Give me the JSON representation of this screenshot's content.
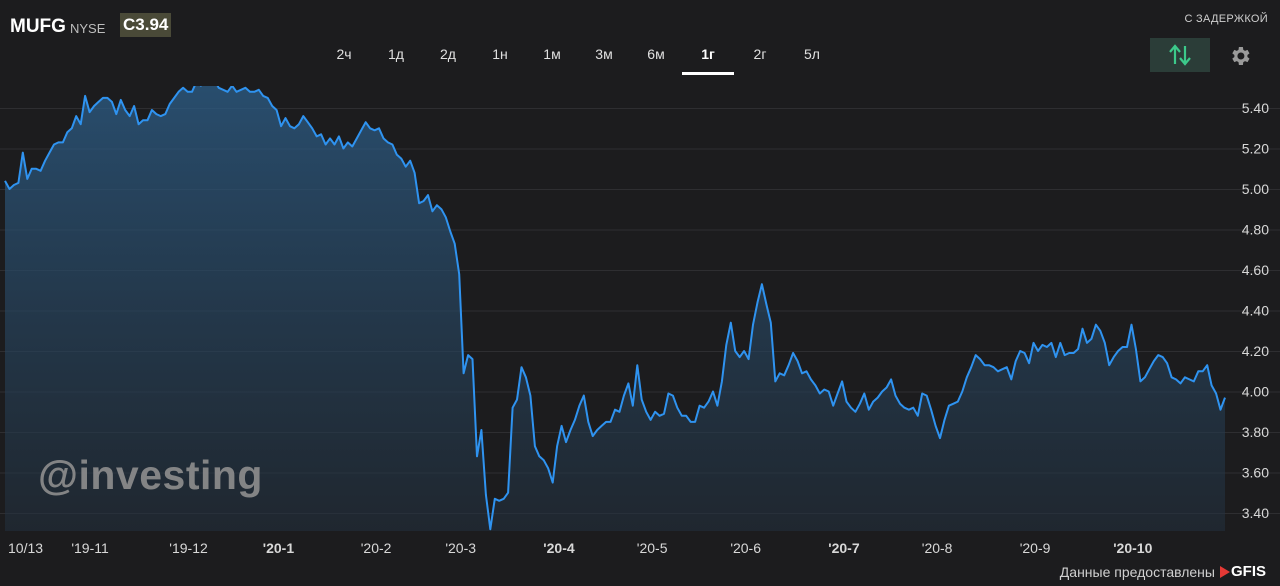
{
  "header": {
    "ticker": "MUFG",
    "exchange": "NYSE",
    "price": "C3.94",
    "delay_label": "С ЗАДЕРЖКОЙ"
  },
  "tabs": [
    {
      "label": "2ч",
      "active": false
    },
    {
      "label": "1д",
      "active": false
    },
    {
      "label": "2д",
      "active": false
    },
    {
      "label": "1н",
      "active": false
    },
    {
      "label": "1м",
      "active": false
    },
    {
      "label": "3м",
      "active": false
    },
    {
      "label": "6м",
      "active": false
    },
    {
      "label": "1г",
      "active": true
    },
    {
      "label": "2г",
      "active": false
    },
    {
      "label": "5л",
      "active": false
    }
  ],
  "icons": {
    "sort": "sort-arrows-icon",
    "settings": "gear-icon"
  },
  "colors": {
    "background": "#1c1c1e",
    "line": "#2f93f0",
    "accent_button": "#2b3d38",
    "accent_arrows": "#3cc98a"
  },
  "watermark": "@investing",
  "footer": {
    "credit": "Данные предоставлены",
    "provider": "GFIS"
  },
  "chart_data": {
    "type": "area",
    "ylim": [
      3.3,
      5.6
    ],
    "yticks": [
      "5.40",
      "5.20",
      "5.00",
      "4.80",
      "4.60",
      "4.40",
      "4.20",
      "4.00",
      "3.80",
      "3.60",
      "3.40"
    ],
    "grid": true,
    "xticks": [
      {
        "label": "10/13",
        "pos": 0,
        "bold": false
      },
      {
        "label": "'19-11",
        "pos": 14,
        "bold": false
      },
      {
        "label": "'19-12",
        "pos": 36,
        "bold": false
      },
      {
        "label": "'20-1",
        "pos": 57,
        "bold": true
      },
      {
        "label": "'20-2",
        "pos": 79,
        "bold": false
      },
      {
        "label": "'20-3",
        "pos": 98,
        "bold": false
      },
      {
        "label": "'20-4",
        "pos": 120,
        "bold": true
      },
      {
        "label": "'20-5",
        "pos": 141,
        "bold": false
      },
      {
        "label": "'20-6",
        "pos": 162,
        "bold": false
      },
      {
        "label": "'20-7",
        "pos": 184,
        "bold": true
      },
      {
        "label": "'20-8",
        "pos": 205,
        "bold": false
      },
      {
        "label": "'20-9",
        "pos": 227,
        "bold": false
      },
      {
        "label": "'20-10",
        "pos": 248,
        "bold": true
      }
    ],
    "values": [
      5.04,
      5.0,
      5.02,
      5.03,
      5.18,
      5.05,
      5.1,
      5.1,
      5.09,
      5.14,
      5.18,
      5.22,
      5.23,
      5.23,
      5.28,
      5.3,
      5.36,
      5.32,
      5.46,
      5.38,
      5.41,
      5.43,
      5.45,
      5.45,
      5.43,
      5.37,
      5.44,
      5.39,
      5.36,
      5.41,
      5.32,
      5.34,
      5.34,
      5.39,
      5.37,
      5.36,
      5.37,
      5.42,
      5.45,
      5.48,
      5.5,
      5.48,
      5.48,
      5.53,
      5.51,
      5.55,
      5.55,
      5.54,
      5.5,
      5.49,
      5.48,
      5.51,
      5.48,
      5.49,
      5.5,
      5.48,
      5.48,
      5.49,
      5.46,
      5.45,
      5.41,
      5.39,
      5.31,
      5.35,
      5.31,
      5.3,
      5.32,
      5.36,
      5.33,
      5.3,
      5.26,
      5.27,
      5.22,
      5.25,
      5.22,
      5.26,
      5.2,
      5.23,
      5.21,
      5.25,
      5.29,
      5.33,
      5.3,
      5.29,
      5.3,
      5.25,
      5.23,
      5.22,
      5.17,
      5.15,
      5.11,
      5.14,
      5.08,
      4.93,
      4.94,
      4.97,
      4.89,
      4.92,
      4.9,
      4.86,
      4.79,
      4.73,
      4.58,
      4.09,
      4.18,
      4.16,
      3.68,
      3.81,
      3.49,
      3.32,
      3.47,
      3.46,
      3.47,
      3.5,
      3.92,
      3.96,
      4.12,
      4.07,
      3.98,
      3.73,
      3.68,
      3.66,
      3.62,
      3.55,
      3.73,
      3.83,
      3.75,
      3.81,
      3.86,
      3.93,
      3.98,
      3.85,
      3.78,
      3.81,
      3.83,
      3.85,
      3.85,
      3.91,
      3.9,
      3.98,
      4.04,
      3.93,
      4.13,
      3.96,
      3.9,
      3.86,
      3.9,
      3.88,
      3.89,
      3.99,
      3.98,
      3.92,
      3.88,
      3.88,
      3.85,
      3.85,
      3.93,
      3.92,
      3.95,
      4.0,
      3.93,
      4.05,
      4.23,
      4.34,
      4.2,
      4.17,
      4.2,
      4.16,
      4.33,
      4.44,
      4.53,
      4.43,
      4.34,
      4.05,
      4.09,
      4.08,
      4.13,
      4.19,
      4.15,
      4.09,
      4.1,
      4.06,
      4.03,
      3.99,
      4.01,
      4.0,
      3.93,
      3.99,
      4.05,
      3.95,
      3.92,
      3.9,
      3.94,
      3.99,
      3.91,
      3.95,
      3.97,
      4.0,
      4.02,
      4.06,
      3.98,
      3.94,
      3.92,
      3.91,
      3.92,
      3.88,
      3.99,
      3.98,
      3.91,
      3.83,
      3.77,
      3.86,
      3.93,
      3.94,
      3.95,
      4.0,
      4.07,
      4.12,
      4.18,
      4.16,
      4.13,
      4.13,
      4.12,
      4.1,
      4.11,
      4.12,
      4.06,
      4.15,
      4.2,
      4.19,
      4.14,
      4.24,
      4.2,
      4.23,
      4.22,
      4.24,
      4.17,
      4.24,
      4.18,
      4.19,
      4.19,
      4.21,
      4.31,
      4.24,
      4.26,
      4.33,
      4.3,
      4.24,
      4.13,
      4.17,
      4.2,
      4.22,
      4.22,
      4.33,
      4.21,
      4.05,
      4.07,
      4.11,
      4.15,
      4.18,
      4.17,
      4.14,
      4.07,
      4.06,
      4.04,
      4.07,
      4.06,
      4.05,
      4.1,
      4.1,
      4.13,
      4.03,
      3.99,
      3.91,
      3.97
    ]
  }
}
